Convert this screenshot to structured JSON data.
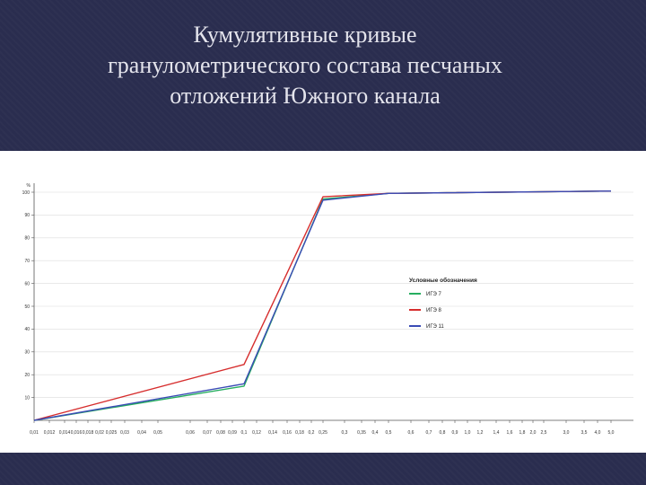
{
  "slide": {
    "title_lines": [
      "Кумулятивные кривые",
      "гранулометрического состава песчаных",
      "отложений Южного канала"
    ]
  },
  "chart_data": {
    "type": "line",
    "ylabel": "%",
    "ylim": [
      0,
      100
    ],
    "y_ticks": [
      "10",
      "20",
      "30",
      "40",
      "50",
      "60",
      "70",
      "80",
      "90",
      "100"
    ],
    "x_tick_labels": [
      "0,01",
      "0,012",
      "0,014",
      "0,016",
      "0,018",
      "0,02",
      "0,025",
      "0,03",
      "0,04",
      "0,05",
      "0,06",
      "0,07",
      "0,08",
      "0,09",
      "0,1",
      "0,12",
      "0,14",
      "0,16",
      "0,18",
      "0,2",
      "0,25",
      "0,3",
      "0,35",
      "0,4",
      "0,5",
      "0,6",
      "0,7",
      "0,8",
      "0,9",
      "1,0",
      "1,2",
      "1,4",
      "1,6",
      "1,8",
      "2,0",
      "2,5",
      "3,0",
      "3,5",
      "4,0",
      "5,0"
    ],
    "legend": {
      "title": "Условные обозначения",
      "placement": "right"
    },
    "series": [
      {
        "name": "ИГЭ 7",
        "color": "#27ae60",
        "points": [
          {
            "x": "0,01",
            "y": 0
          },
          {
            "x": "0,1",
            "y": 15
          },
          {
            "x": "0,25",
            "y": 97
          },
          {
            "x": "0,5",
            "y": 99.5
          },
          {
            "x": "5,0",
            "y": 100.5
          }
        ]
      },
      {
        "name": "ИГЭ 8",
        "color": "#d62d2d",
        "points": [
          {
            "x": "0,01",
            "y": 0
          },
          {
            "x": "0,1",
            "y": 24.5
          },
          {
            "x": "0,25",
            "y": 98
          },
          {
            "x": "0,5",
            "y": 99.5
          },
          {
            "x": "5,0",
            "y": 100.5
          }
        ]
      },
      {
        "name": "ИГЭ 11",
        "color": "#3a4bb5",
        "points": [
          {
            "x": "0,01",
            "y": 0
          },
          {
            "x": "0,1",
            "y": 16
          },
          {
            "x": "0,25",
            "y": 96.5
          },
          {
            "x": "0,5",
            "y": 99.5
          },
          {
            "x": "5,0",
            "y": 100.5
          }
        ]
      }
    ]
  }
}
